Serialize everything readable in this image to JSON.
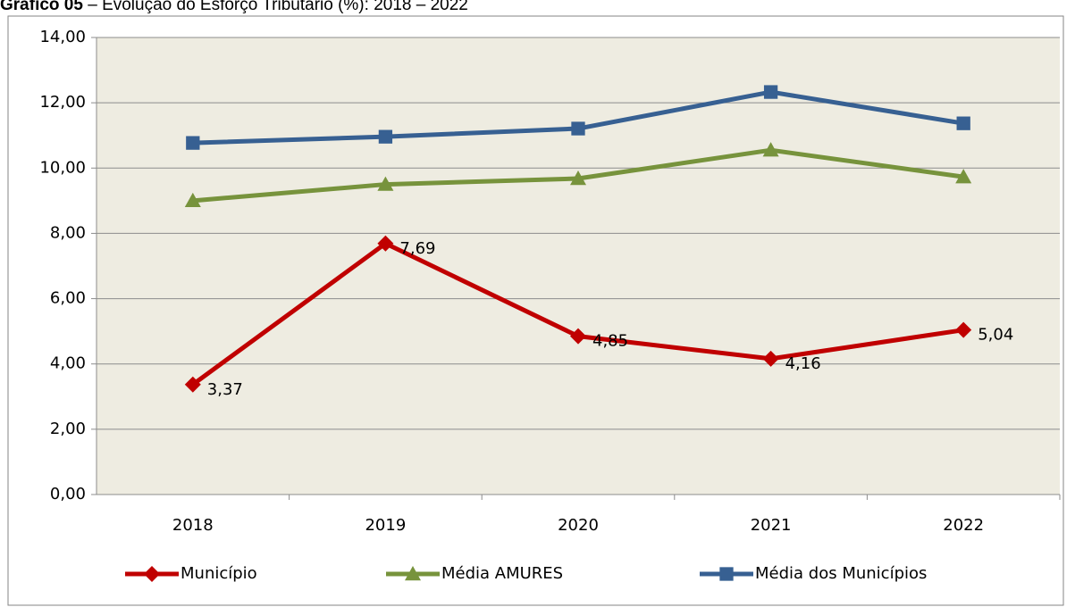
{
  "chart_data": {
    "type": "line",
    "title": "Gráfico 05",
    "subtitle": "– Evolução do Esforço Tributário (%): 2018 – 2022",
    "categories": [
      "2018",
      "2019",
      "2020",
      "2021",
      "2022"
    ],
    "series": [
      {
        "name": "Município",
        "color": "#c00000",
        "marker": "diamond",
        "values": [
          3.37,
          7.69,
          4.85,
          4.16,
          5.04
        ],
        "value_labels": [
          "3,37",
          "7,69",
          "4,85",
          "4,16",
          "5,04"
        ]
      },
      {
        "name": "Média AMURES",
        "color": "#77933c",
        "marker": "triangle",
        "values": [
          9.0,
          9.5,
          9.68,
          10.55,
          9.73
        ]
      },
      {
        "name": "Média dos Municípios",
        "color": "#376092",
        "marker": "square",
        "values": [
          10.77,
          10.96,
          11.21,
          12.33,
          11.37
        ]
      }
    ],
    "ylim": [
      0,
      14
    ],
    "yticks": [
      {
        "value": 0,
        "label": "0,00"
      },
      {
        "value": 2,
        "label": "2,00"
      },
      {
        "value": 4,
        "label": "4,00"
      },
      {
        "value": 6,
        "label": "6,00"
      },
      {
        "value": 8,
        "label": "8,00"
      },
      {
        "value": 10,
        "label": "10,00"
      },
      {
        "value": 12,
        "label": "12,00"
      },
      {
        "value": 14,
        "label": "14,00"
      }
    ],
    "grid": true,
    "legend": "bottom"
  }
}
